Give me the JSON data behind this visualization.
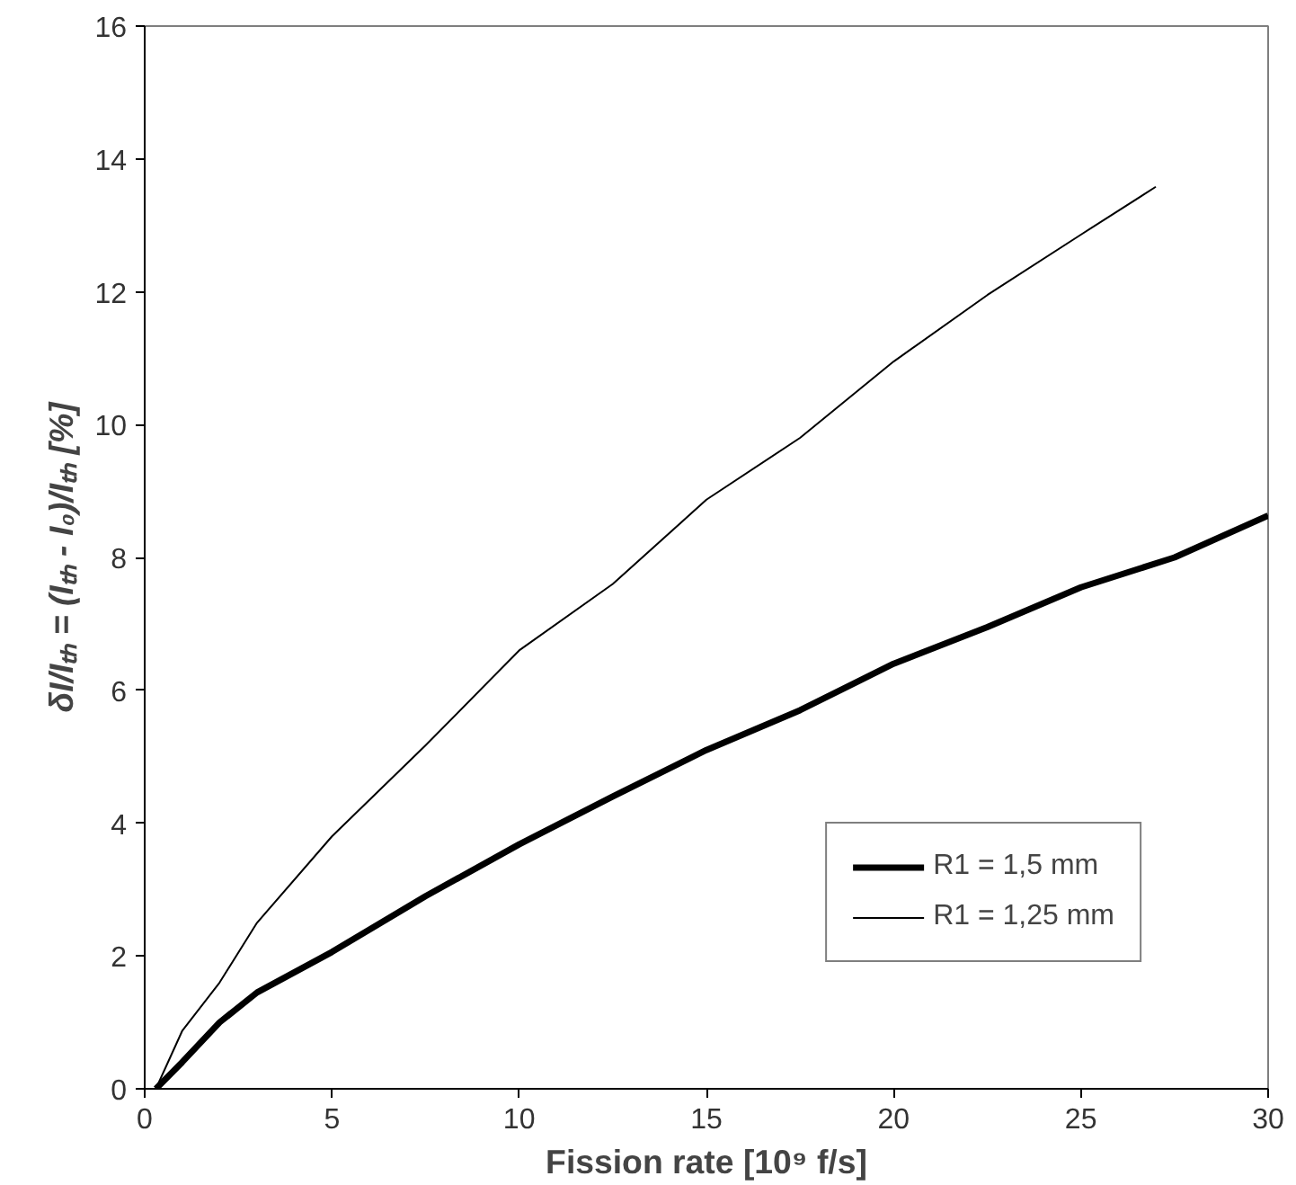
{
  "chart_data": {
    "type": "line",
    "xlabel": "Fission rate [10⁹ f/s]",
    "ylabel": "δI/Iₜₕ = (Iₜₕ - I₀)/Iₜₕ [%]",
    "xlim": [
      0,
      30
    ],
    "ylim": [
      0,
      16
    ],
    "xticks": [
      0,
      5,
      10,
      15,
      20,
      25,
      30
    ],
    "yticks": [
      0,
      2,
      4,
      6,
      8,
      10,
      12,
      14,
      16
    ],
    "grid": false,
    "legend": "bottom right",
    "marker": "none",
    "line_style": "solid",
    "series": [
      {
        "name": "R1 = 1,5 mm",
        "color": "#000000",
        "x": [
          0.3,
          1,
          2,
          3,
          5,
          7.5,
          10,
          12.5,
          15,
          17.5,
          20,
          22.5,
          25,
          27.5,
          30
        ],
        "values": [
          0,
          0.4,
          1.0,
          1.45,
          2.06,
          2.9,
          3.68,
          4.4,
          5.1,
          5.7,
          6.4,
          6.95,
          7.55,
          8.0,
          8.63
        ]
      },
      {
        "name": "R1 = 1,25 mm",
        "color": "#000000",
        "x": [
          0.3,
          1,
          2,
          3,
          5,
          7.5,
          10,
          12.5,
          15,
          17.5,
          20,
          22.5,
          25,
          27
        ],
        "values": [
          0,
          0.87,
          1.6,
          2.5,
          3.8,
          5.17,
          6.6,
          7.6,
          8.87,
          9.8,
          10.95,
          11.95,
          12.86,
          13.58
        ]
      }
    ]
  }
}
